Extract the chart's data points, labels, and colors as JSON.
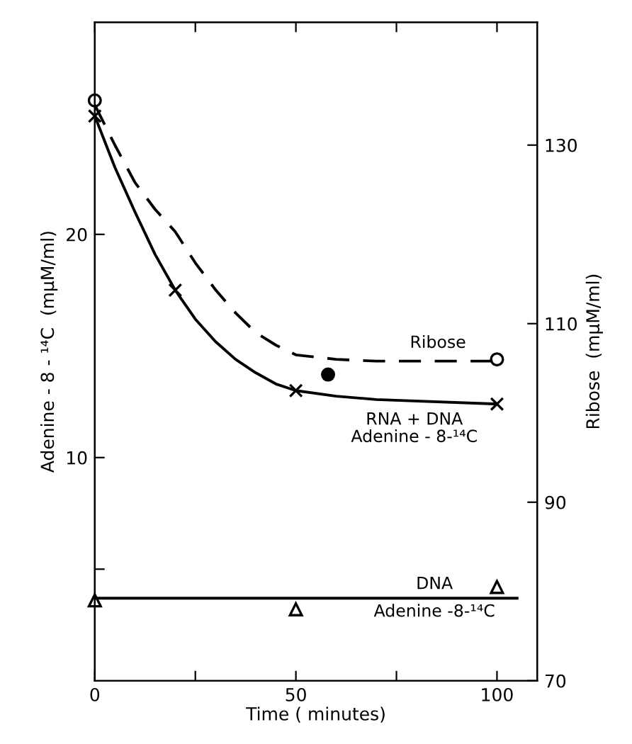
{
  "chart_data": {
    "type": "line",
    "xlabel": "Time ( minutes)",
    "ylabel": "Adenine - 8 - ¹⁴C  (mμM/ml)",
    "y2label": "Ribose  (mμM/ml)",
    "xlim": [
      0,
      110
    ],
    "xticks": [
      0,
      {
        "value": 25,
        "label": null
      },
      50,
      {
        "value": 75,
        "label": null
      },
      100
    ],
    "ylim": [
      0,
      29.5
    ],
    "yticks": [
      {
        "value": 5,
        "label": null
      },
      10,
      20
    ],
    "y2lim": [
      70,
      143.75
    ],
    "y2ticks": [
      70,
      90,
      110,
      130
    ],
    "grid": false,
    "series": [
      {
        "name": "Ribose",
        "axis": "y2",
        "color": "#000000",
        "line_style": "dashed",
        "marker": "none",
        "x": [
          0,
          5,
          10,
          15,
          20,
          25,
          30,
          35,
          40,
          45,
          50,
          60,
          70,
          100
        ],
        "values": [
          134.5,
          130,
          125.8,
          122.8,
          120.3,
          116.8,
          113.8,
          111.2,
          109,
          107.6,
          106.5,
          106,
          105.8,
          105.8
        ]
      },
      {
        "type": "scatter",
        "axis": "y2",
        "color": "#000000",
        "marker": "circle",
        "x": [
          0,
          100
        ],
        "values": [
          135,
          106
        ]
      },
      {
        "type": "scatter",
        "axis": "y2",
        "color": "#000000",
        "marker": "filled_circle",
        "x": [
          58
        ],
        "values": [
          104.3
        ]
      },
      {
        "name": "RNA + DNA\nAdenine - 8-¹⁴C",
        "color": "#000000",
        "line_style": "solid",
        "marker": "none",
        "x": [
          0,
          5,
          10,
          15,
          20,
          25,
          30,
          35,
          40,
          45,
          50,
          60,
          70,
          100
        ],
        "values": [
          25.3,
          23,
          21,
          19.1,
          17.5,
          16.2,
          15.2,
          14.4,
          13.8,
          13.3,
          13.0,
          12.75,
          12.6,
          12.4
        ]
      },
      {
        "type": "scatter",
        "color": "#000000",
        "marker": "cross",
        "x": [
          0,
          20,
          50,
          100
        ],
        "values": [
          25.3,
          17.5,
          13.0,
          12.4
        ]
      },
      {
        "name": "DNA\nAdenine -8-¹⁴C",
        "color": "#000000",
        "line_style": "solid",
        "marker": "none",
        "x": [
          0,
          105
        ],
        "values": [
          3.7,
          3.7
        ]
      },
      {
        "type": "scatter",
        "color": "#000000",
        "marker": "triangle",
        "x": [
          0,
          50,
          100
        ],
        "values": [
          3.6,
          3.2,
          4.2
        ]
      }
    ]
  }
}
